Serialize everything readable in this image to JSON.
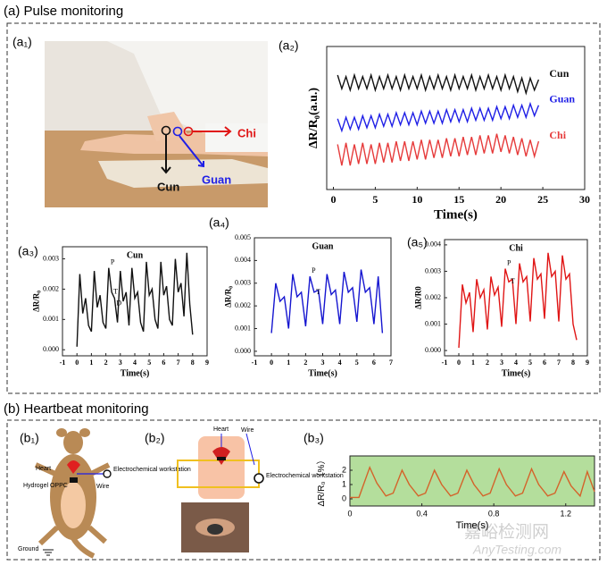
{
  "sections": [
    {
      "title": "(a) Pulse monitoring"
    },
    {
      "title": "(b) Heartbeat monitoring"
    }
  ],
  "photo": {
    "label": "(a₁)",
    "points": [
      "Chi",
      "Cun",
      "Guan"
    ]
  },
  "diagram_b1": {
    "label": "(b₁)",
    "texts": [
      "Heart",
      "Electrochemical workstation",
      "Hydrogel OPPC",
      "Wire",
      "Ground"
    ]
  },
  "diagram_b2": {
    "label": "(b₂)",
    "texts": [
      "Heart",
      "Wire",
      "Electrochemical workstation"
    ]
  },
  "watermark": [
    "嘉峪检测网",
    "AnyTesting.com"
  ],
  "chart_data": [
    {
      "type": "line",
      "panel": "(a₂)",
      "xlabel": "Time(s)",
      "ylabel": "ΔR/R₀(a.u.)",
      "xlim": [
        -0.8,
        30
      ],
      "ylim": [
        1,
        10.5
      ],
      "xticks": [
        0,
        5,
        10,
        15,
        20,
        25,
        30
      ],
      "x": [
        0.5,
        1,
        1.5,
        2,
        2.5,
        3,
        3.5,
        4,
        4.5,
        5,
        5.5,
        6,
        6.5,
        7,
        7.5,
        8,
        8.5,
        9,
        9.5,
        10,
        10.5,
        11,
        11.5,
        12,
        12.5,
        13,
        13.5,
        14,
        14.5,
        15,
        15.5,
        16,
        16.5,
        17,
        17.5,
        18,
        18.5,
        19,
        19.5,
        20,
        20.5,
        21,
        21.5,
        22,
        22.5,
        23,
        23.5,
        24,
        24.5
      ],
      "series": [
        {
          "name": "Cun",
          "color": "#111111",
          "values": [
            8.6,
            7.7,
            8.5,
            7.6,
            8.6,
            7.7,
            8.5,
            7.7,
            8.6,
            7.6,
            8.5,
            7.7,
            8.6,
            7.7,
            8.5,
            7.6,
            8.6,
            7.7,
            8.5,
            7.7,
            8.6,
            7.6,
            8.5,
            7.7,
            8.6,
            7.7,
            8.5,
            7.6,
            8.6,
            7.7,
            8.5,
            7.7,
            8.6,
            7.6,
            8.5,
            7.7,
            8.6,
            7.7,
            8.5,
            7.6,
            8.6,
            7.7,
            8.5,
            7.5,
            8.4,
            7.4,
            8.4,
            7.6,
            8.3
          ]
        },
        {
          "name": "Guan",
          "color": "#1f1fe6",
          "values": [
            5.7,
            4.9,
            5.8,
            5.0,
            5.8,
            5.0,
            5.9,
            5.1,
            5.9,
            5.1,
            6.0,
            5.2,
            6.0,
            5.2,
            6.1,
            5.3,
            6.1,
            5.3,
            6.1,
            5.3,
            6.2,
            5.4,
            6.2,
            5.4,
            6.2,
            5.4,
            6.3,
            5.5,
            6.3,
            5.5,
            6.3,
            5.5,
            6.4,
            5.6,
            6.4,
            5.6,
            6.4,
            5.6,
            6.5,
            5.7,
            6.5,
            5.7,
            6.6,
            5.8,
            6.6,
            5.8,
            6.7,
            5.9,
            6.6
          ]
        },
        {
          "name": "Chi",
          "color": "#e63b3b",
          "values": [
            4.0,
            2.6,
            4.1,
            2.6,
            4.0,
            2.7,
            4.1,
            2.7,
            4.0,
            2.7,
            4.1,
            2.8,
            4.1,
            2.8,
            4.2,
            2.9,
            4.2,
            2.9,
            4.2,
            3.0,
            4.3,
            3.0,
            4.3,
            3.1,
            4.3,
            3.1,
            4.4,
            3.2,
            4.4,
            3.2,
            4.5,
            3.3,
            4.5,
            3.3,
            4.6,
            3.4,
            4.6,
            3.4,
            4.7,
            3.5,
            4.6,
            3.4,
            4.5,
            3.3,
            4.4,
            3.2,
            4.3,
            3.2,
            4.2
          ]
        }
      ]
    },
    {
      "type": "line",
      "panel": "(a₃)",
      "title": "Cun",
      "xlabel": "Time(s)",
      "ylabel": "ΔR/R₀",
      "color": "#111111",
      "xlim": [
        -1,
        9
      ],
      "ylim": [
        -0.0002,
        0.0034
      ],
      "xticks": [
        -1,
        0,
        1,
        2,
        3,
        4,
        5,
        6,
        7,
        8,
        9
      ],
      "yticks": [
        {
          "value": 0,
          "label": "0.000"
        },
        {
          "value": 0.001,
          "label": "0.001"
        },
        {
          "value": 0.002,
          "label": "0.002"
        },
        {
          "value": 0.003,
          "label": "0.003"
        }
      ],
      "annotations": [
        "P",
        "T",
        "D"
      ],
      "x": [
        0,
        0.2,
        0.4,
        0.6,
        0.8,
        1.0,
        1.2,
        1.4,
        1.6,
        1.8,
        2.0,
        2.2,
        2.4,
        2.6,
        2.8,
        3.0,
        3.2,
        3.4,
        3.6,
        3.8,
        4.0,
        4.2,
        4.4,
        4.6,
        4.8,
        5.0,
        5.2,
        5.4,
        5.6,
        5.8,
        6.0,
        6.2,
        6.4,
        6.6,
        6.8,
        7.0,
        7.2,
        7.4,
        7.6,
        7.8,
        8.0
      ],
      "values": [
        0.0001,
        0.0025,
        0.0012,
        0.0017,
        0.0008,
        0.0006,
        0.0026,
        0.0014,
        0.0018,
        0.0009,
        0.0007,
        0.0027,
        0.0019,
        0.0017,
        0.0009,
        0.0026,
        0.0016,
        0.0019,
        0.0008,
        0.0027,
        0.0017,
        0.0019,
        0.0009,
        0.0006,
        0.0029,
        0.0018,
        0.002,
        0.001,
        0.0007,
        0.0029,
        0.0018,
        0.0021,
        0.001,
        0.0008,
        0.003,
        0.0019,
        0.0022,
        0.0011,
        0.0032,
        0.0015,
        0.0005
      ]
    },
    {
      "type": "line",
      "panel": "(a₄)",
      "title": "Guan",
      "xlabel": "Time(s)",
      "ylabel": "ΔR/R₀",
      "color": "#1515d0",
      "xlim": [
        -1,
        7
      ],
      "ylim": [
        -0.0002,
        0.005
      ],
      "xticks": [
        -1,
        0,
        1,
        2,
        3,
        4,
        5,
        6,
        7
      ],
      "yticks": [
        {
          "value": 0,
          "label": "0.000"
        },
        {
          "value": 0.001,
          "label": "0.001"
        },
        {
          "value": 0.002,
          "label": "0.002"
        },
        {
          "value": 0.003,
          "label": "0.003"
        },
        {
          "value": 0.004,
          "label": "0.004"
        },
        {
          "value": 0.005,
          "label": "0.005"
        }
      ],
      "annotations": [
        "P",
        "T"
      ],
      "x": [
        0,
        0.25,
        0.5,
        0.75,
        1.0,
        1.25,
        1.5,
        1.75,
        2.0,
        2.25,
        2.5,
        2.75,
        3.0,
        3.25,
        3.5,
        3.75,
        4.0,
        4.25,
        4.5,
        4.75,
        5.0,
        5.25,
        5.5,
        5.75,
        6.0,
        6.25,
        6.5
      ],
      "values": [
        0.0008,
        0.003,
        0.0022,
        0.0024,
        0.001,
        0.0034,
        0.0024,
        0.0026,
        0.0011,
        0.0033,
        0.0026,
        0.0027,
        0.0012,
        0.0034,
        0.0025,
        0.0027,
        0.0012,
        0.0035,
        0.0026,
        0.0028,
        0.0013,
        0.0036,
        0.0026,
        0.0028,
        0.0012,
        0.0033,
        0.0008
      ]
    },
    {
      "type": "line",
      "panel": "(a₅)",
      "title": "Chi",
      "xlabel": "Time(s)",
      "ylabel": "ΔR/R0",
      "color": "#e01515",
      "xlim": [
        -1,
        9
      ],
      "ylim": [
        -0.0002,
        0.0042
      ],
      "xticks": [
        -1,
        0,
        1,
        2,
        3,
        4,
        5,
        6,
        7,
        8,
        9
      ],
      "yticks": [
        {
          "value": 0,
          "label": "0.000"
        },
        {
          "value": 0.001,
          "label": "0.001"
        },
        {
          "value": 0.002,
          "label": "0.002"
        },
        {
          "value": 0.003,
          "label": "0.003"
        },
        {
          "value": 0.004,
          "label": "0.004"
        }
      ],
      "annotations": [
        "P",
        "T"
      ],
      "x": [
        0,
        0.25,
        0.5,
        0.75,
        1.0,
        1.25,
        1.5,
        1.75,
        2.0,
        2.25,
        2.5,
        2.75,
        3.0,
        3.25,
        3.5,
        3.75,
        4.0,
        4.25,
        4.5,
        4.75,
        5.0,
        5.25,
        5.5,
        5.75,
        6.0,
        6.25,
        6.5,
        6.75,
        7.0,
        7.25,
        7.5,
        7.75,
        8.0,
        8.25
      ],
      "values": [
        0.0001,
        0.0025,
        0.0018,
        0.0022,
        0.0007,
        0.0027,
        0.002,
        0.0023,
        0.0008,
        0.0028,
        0.0021,
        0.0024,
        0.0009,
        0.0031,
        0.0026,
        0.0027,
        0.001,
        0.0033,
        0.0026,
        0.0028,
        0.0011,
        0.0035,
        0.0027,
        0.0029,
        0.0012,
        0.0037,
        0.0028,
        0.003,
        0.0011,
        0.0036,
        0.0027,
        0.0029,
        0.001,
        0.0004
      ]
    },
    {
      "type": "line",
      "panel": "(b₃)",
      "xlabel": "Time(s)",
      "ylabel": "ΔR/R₀（%）",
      "color": "#d4632a",
      "background": "#b4de9c",
      "xlim": [
        0,
        1.36
      ],
      "ylim": [
        -0.5,
        3
      ],
      "xticks": [
        0,
        0.4,
        0.8,
        1.2
      ],
      "yticks": [
        0,
        1,
        2
      ],
      "x": [
        0,
        0.05,
        0.11,
        0.15,
        0.2,
        0.24,
        0.29,
        0.33,
        0.38,
        0.42,
        0.47,
        0.51,
        0.56,
        0.6,
        0.65,
        0.69,
        0.74,
        0.78,
        0.83,
        0.87,
        0.92,
        0.96,
        1.01,
        1.05,
        1.1,
        1.14,
        1.19,
        1.23,
        1.28,
        1.32,
        1.36
      ],
      "values": [
        0.1,
        0.1,
        2.2,
        1.1,
        0.2,
        0.4,
        2.0,
        1.0,
        0.2,
        0.4,
        2.0,
        1.0,
        0.2,
        0.4,
        2.0,
        1.0,
        0.2,
        0.4,
        2.1,
        1.0,
        0.2,
        0.4,
        2.1,
        1.0,
        0.2,
        0.4,
        1.9,
        0.9,
        0.2,
        1.9,
        0.5
      ]
    }
  ]
}
